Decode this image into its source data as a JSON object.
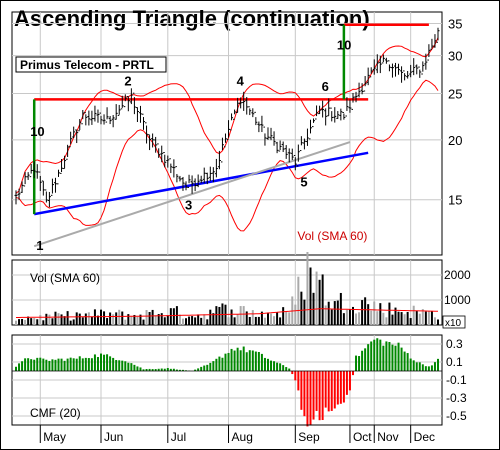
{
  "title": "Ascending Triangle (continuation)",
  "chart_data": [
    {
      "type": "candlestick",
      "name": "price",
      "legend": "Primus Telecom - PRTL",
      "y_scale": "log",
      "ylim": [
        11.5,
        37
      ],
      "yticks": [
        15,
        20,
        25,
        30,
        35
      ],
      "x_labels": [
        "May",
        "Jun",
        "Jul",
        "Aug",
        "Sep",
        "Oct",
        "Nov",
        "Dec"
      ],
      "grid": true,
      "ohlc": {
        "date_axis": "trading days",
        "keypoints": [
          [
            0,
            15.2
          ],
          [
            6,
            17.5
          ],
          [
            10,
            14.8
          ],
          [
            14,
            17.0
          ],
          [
            22,
            22.5
          ],
          [
            30,
            22.0
          ],
          [
            38,
            24.5
          ],
          [
            44,
            20.0
          ],
          [
            56,
            16.0
          ],
          [
            66,
            17.5
          ],
          [
            74,
            24.5
          ],
          [
            82,
            20.5
          ],
          [
            92,
            18.0
          ],
          [
            100,
            23.0
          ],
          [
            108,
            22.5
          ],
          [
            116,
            27.0
          ],
          [
            122,
            29.5
          ],
          [
            128,
            27.0
          ],
          [
            134,
            28.5
          ],
          [
            139,
            33.5
          ]
        ]
      },
      "annotations": [
        {
          "text": "1",
          "x": 8,
          "y": 12.0
        },
        {
          "text": "2",
          "x": 37,
          "y": 26.5
        },
        {
          "text": "3",
          "x": 57,
          "y": 14.6
        },
        {
          "text": "4",
          "x": 74,
          "y": 26.5
        },
        {
          "text": "5",
          "x": 95,
          "y": 16.3
        },
        {
          "text": "6",
          "x": 102,
          "y": 25.8
        },
        {
          "text": "10",
          "x": 6,
          "y": 20.8
        },
        {
          "text": "10",
          "x": 107,
          "y": 31.5
        },
        {
          "text": "Vol (SMA 60)",
          "x": 94,
          "y": 12.6
        }
      ],
      "trendlines": [
        {
          "name": "resistance",
          "color": "#ff0000",
          "points": [
            [
              6,
              24.3
            ],
            [
              116,
              24.3
            ]
          ]
        },
        {
          "name": "resistance-projection",
          "color": "#ff0000",
          "points": [
            [
              108,
              34.8
            ],
            [
              136,
              34.8
            ]
          ]
        },
        {
          "name": "support",
          "color": "#0000ff",
          "points": [
            [
              6,
              14.0
            ],
            [
              116,
              18.8
            ]
          ]
        },
        {
          "name": "gray-support",
          "color": "#aaaaaa",
          "points": [
            [
              6,
              12.0
            ],
            [
              110,
              19.8
            ]
          ]
        }
      ],
      "measure_lines": [
        {
          "color": "#008800",
          "x": 6,
          "y_from": 14.0,
          "y_to": 24.3
        },
        {
          "color": "#008800",
          "x": 108,
          "y_from": 24.3,
          "y_to": 34.8
        }
      ],
      "bollinger_bands": {
        "color": "#ff0000",
        "upper": "above",
        "lower": "below"
      }
    },
    {
      "type": "bar",
      "name": "volume",
      "ylabel": "Vol (SMA 60)",
      "yticks": [
        1000,
        2000
      ],
      "unit_label": "x10",
      "ylim": [
        0,
        2600
      ],
      "typical_values": [
        [
          0,
          250
        ],
        [
          10,
          300
        ],
        [
          20,
          350
        ],
        [
          30,
          400
        ],
        [
          40,
          350
        ],
        [
          50,
          500
        ],
        [
          60,
          350
        ],
        [
          70,
          600
        ],
        [
          80,
          400
        ],
        [
          90,
          450
        ],
        [
          97,
          2300
        ],
        [
          100,
          1500
        ],
        [
          105,
          700
        ],
        [
          110,
          1000
        ],
        [
          120,
          600
        ],
        [
          130,
          500
        ],
        [
          139,
          400
        ]
      ],
      "sma_line_color": "#ff0000",
      "sma_values": [
        [
          0,
          300
        ],
        [
          40,
          350
        ],
        [
          80,
          450
        ],
        [
          100,
          650
        ],
        [
          139,
          550
        ]
      ]
    },
    {
      "type": "bar",
      "name": "cmf",
      "ylabel": "CMF (20)",
      "ylim": [
        -0.6,
        0.4
      ],
      "yticks": [
        0.3,
        0.1,
        -0.1,
        -0.3,
        -0.5
      ],
      "positive_color": "#008800",
      "negative_color": "#ff0000",
      "keypoints": [
        [
          0,
          0.05
        ],
        [
          4,
          0.15
        ],
        [
          10,
          0.12
        ],
        [
          20,
          0.14
        ],
        [
          28,
          0.18
        ],
        [
          36,
          0.12
        ],
        [
          42,
          0.02
        ],
        [
          50,
          0.03
        ],
        [
          58,
          0.0
        ],
        [
          64,
          0.08
        ],
        [
          72,
          0.26
        ],
        [
          78,
          0.22
        ],
        [
          84,
          0.12
        ],
        [
          90,
          0.03
        ],
        [
          92,
          -0.1
        ],
        [
          95,
          -0.55
        ],
        [
          100,
          -0.5
        ],
        [
          108,
          -0.35
        ],
        [
          110,
          -0.25
        ],
        [
          112,
          0.15
        ],
        [
          118,
          0.35
        ],
        [
          126,
          0.28
        ],
        [
          132,
          0.1
        ],
        [
          136,
          0.05
        ],
        [
          139,
          0.12
        ]
      ]
    }
  ]
}
